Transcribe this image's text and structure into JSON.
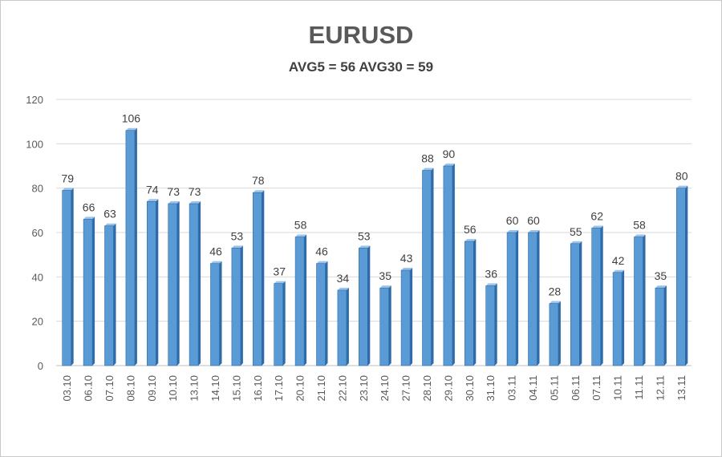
{
  "chart_data": {
    "type": "bar",
    "title": "EURUSD",
    "subtitle": "AVG5 = 56 AVG30 = 59",
    "xlabel": "",
    "ylabel": "",
    "ylim": [
      0,
      120
    ],
    "yticks": [
      0,
      20,
      40,
      60,
      80,
      100,
      120
    ],
    "grid": true,
    "legend": "none",
    "bar_color": "#5b9bd5",
    "bar_edge_color": "#2e6ba8",
    "categories": [
      "03.10",
      "06.10",
      "07.10",
      "08.10",
      "09.10",
      "10.10",
      "13.10",
      "14.10",
      "15.10",
      "16.10",
      "17.10",
      "20.10",
      "21.10",
      "22.10",
      "23.10",
      "24.10",
      "27.10",
      "28.10",
      "29.10",
      "30.10",
      "31.10",
      "03.11",
      "04.11",
      "05.11",
      "06.11",
      "07.11",
      "10.11",
      "11.11",
      "12.11",
      "13.11"
    ],
    "values": [
      79,
      66,
      63,
      106,
      74,
      73,
      73,
      46,
      53,
      78,
      37,
      58,
      46,
      34,
      53,
      35,
      43,
      88,
      90,
      56,
      36,
      60,
      60,
      28,
      55,
      62,
      42,
      58,
      35,
      80
    ]
  }
}
